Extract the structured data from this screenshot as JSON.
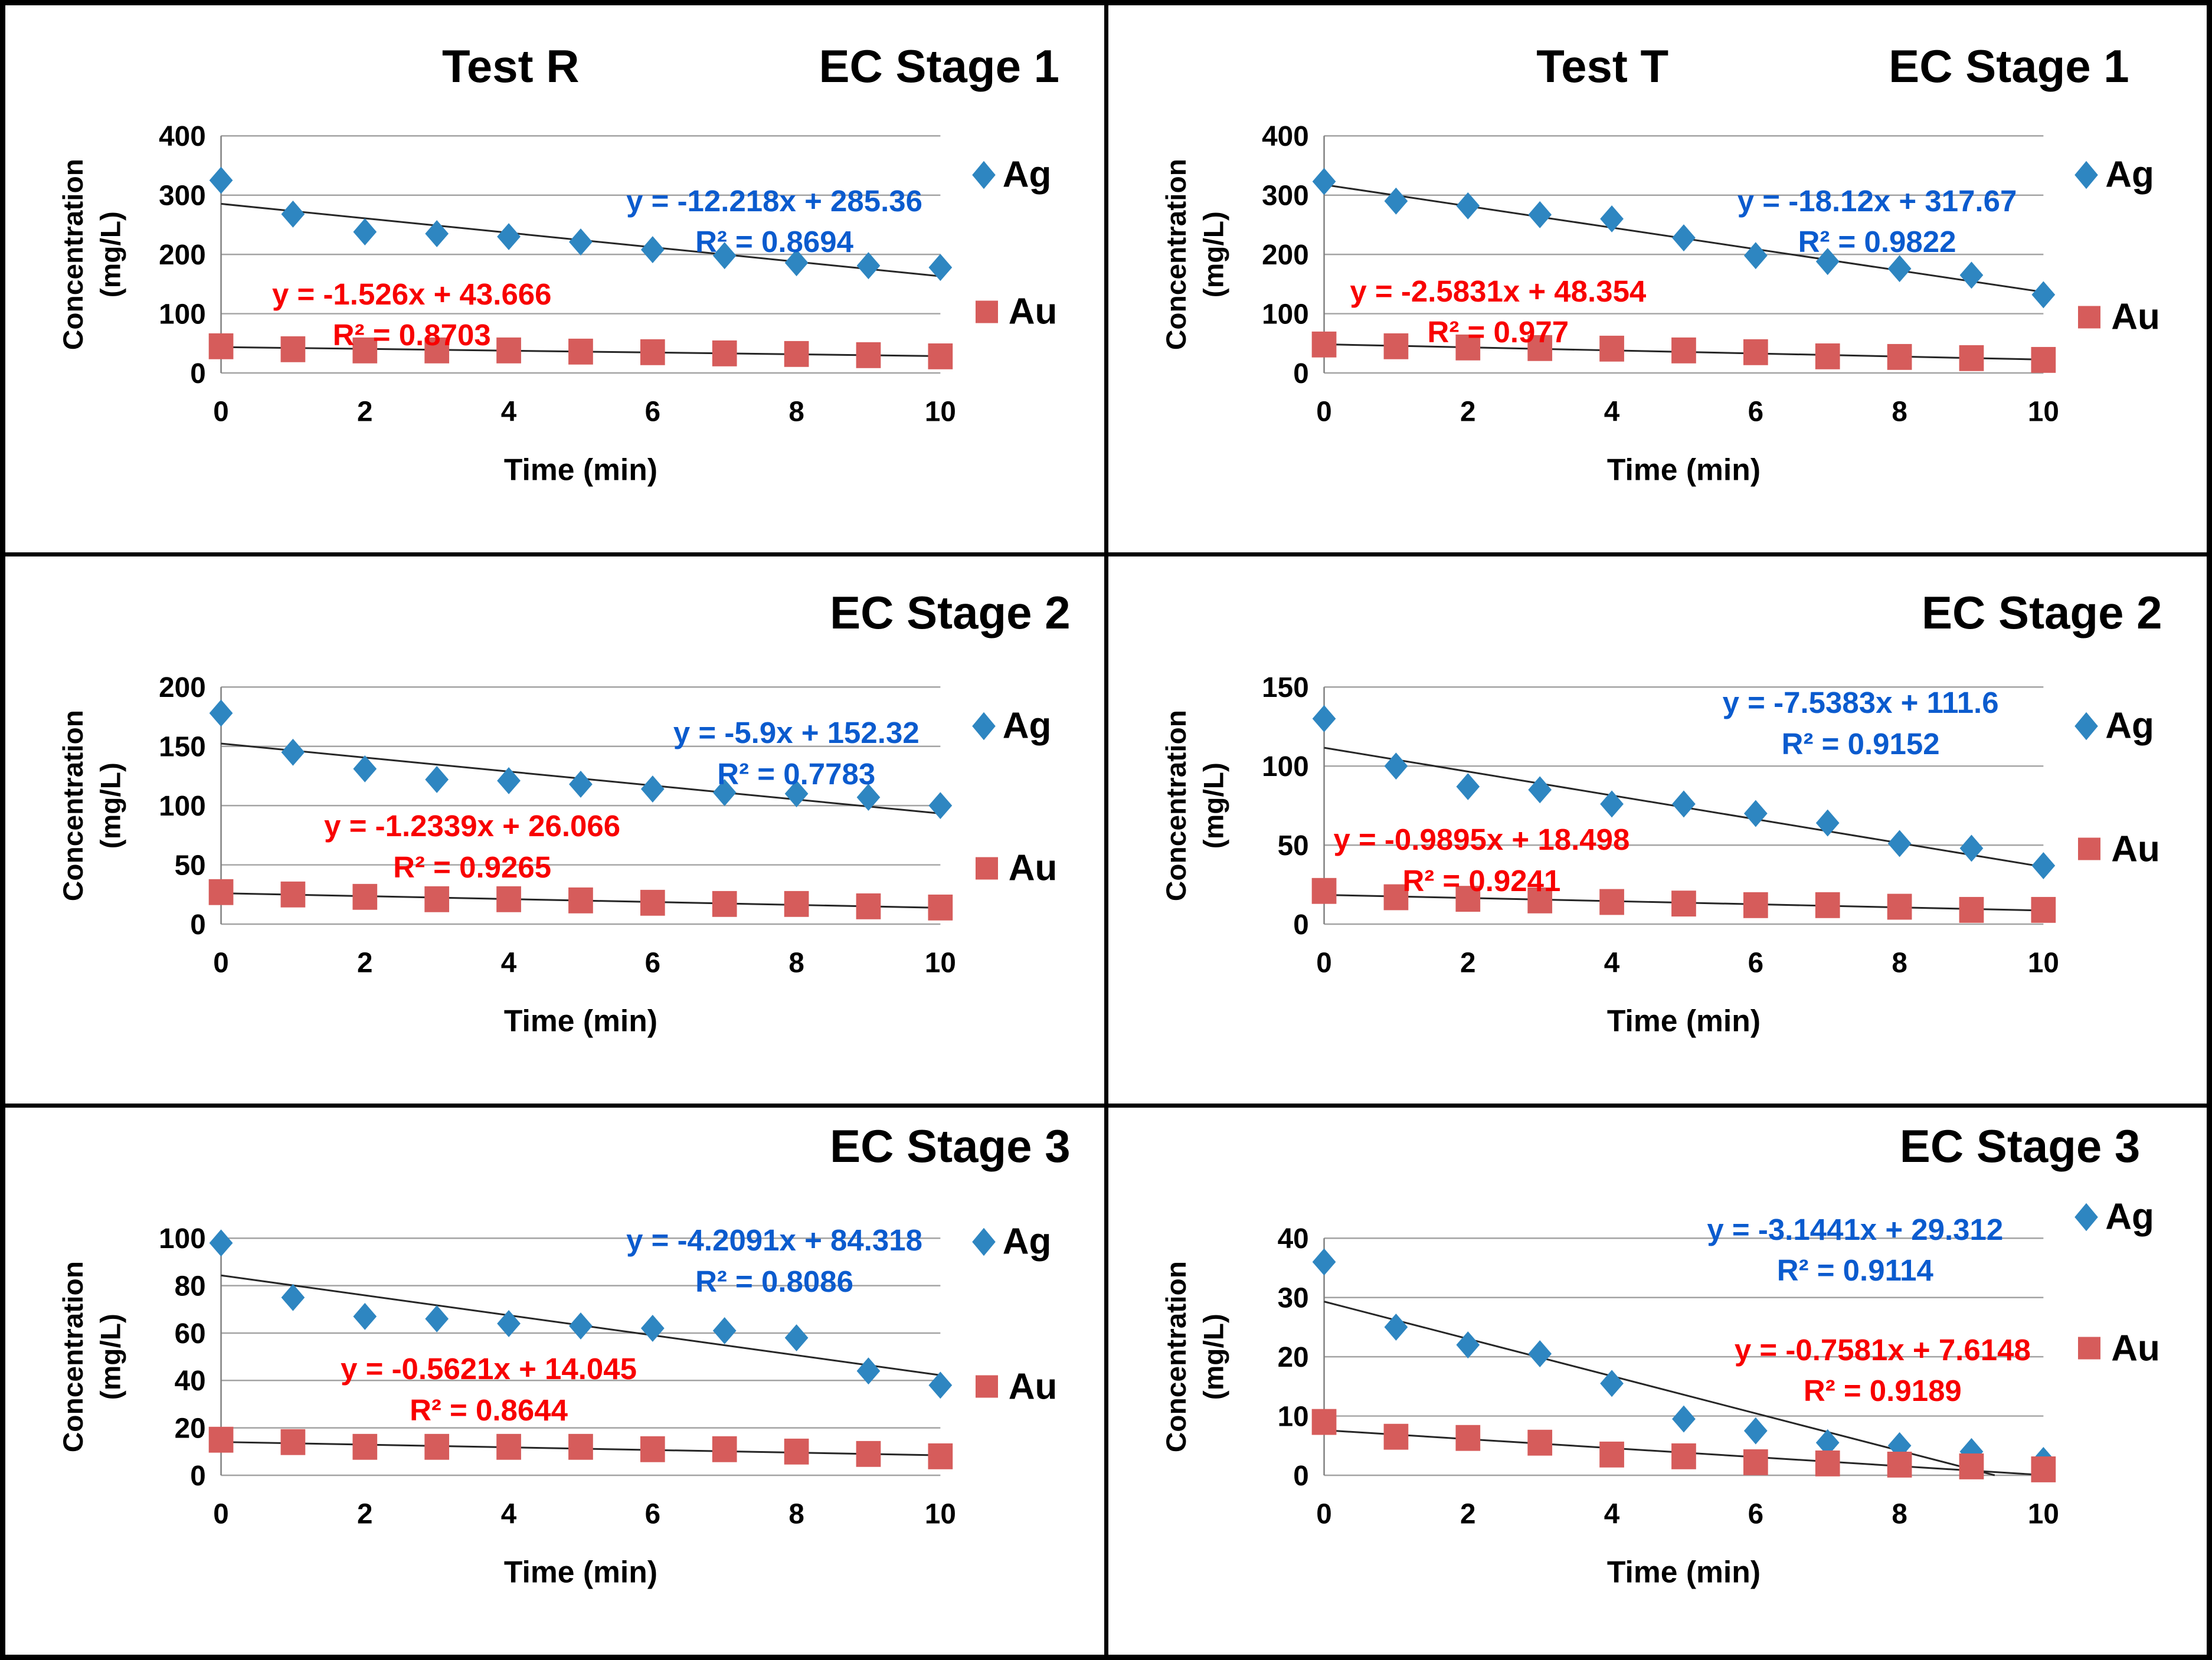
{
  "figure": {
    "description_title": "",
    "rows": 3,
    "cols": 2
  },
  "colors": {
    "ag": "#2e86c1",
    "au": "#d65c5b",
    "eq_ag": "#0b5bce",
    "eq_au": "#f80000",
    "trendline": "#262626",
    "gridline": "#a3a3a3",
    "axis": "#7f7f7f",
    "text": "#000000",
    "background": "#ffffff",
    "border": "#000000"
  },
  "legend": {
    "ag_label": "Ag",
    "au_label": "Au"
  },
  "axis": {
    "y_title_line1": "Concentration",
    "y_title_line2": "(mg/L)",
    "x_title": "Time (min)"
  },
  "chart_data": [
    {
      "id": "test-r-ec-stage-1",
      "type": "scatter",
      "test_label": "Test R",
      "stage_label": "EC Stage 1",
      "x": [
        0,
        1,
        2,
        3,
        4,
        5,
        6,
        7,
        8,
        9,
        10
      ],
      "xlabel": "Time (min)",
      "ylabel": "Concentration (mg/L)",
      "xlim": [
        0,
        10
      ],
      "xtick_step": 2,
      "ylim": [
        0,
        400
      ],
      "ytick_step": 100,
      "grid": "horizontal",
      "legend_position": "right",
      "series": [
        {
          "name": "Ag",
          "marker": "diamond",
          "values": [
            325,
            268,
            238,
            235,
            230,
            221,
            208,
            198,
            186,
            181,
            178
          ],
          "trend": {
            "slope": -12.218,
            "intercept": 285.36,
            "equation": "y = -12.218x + 285.36",
            "r2": "R² = 0.8694"
          }
        },
        {
          "name": "Au",
          "marker": "square",
          "values": [
            45,
            40,
            38,
            38,
            38,
            36,
            35,
            33,
            32,
            30,
            28
          ],
          "trend": {
            "slope": -1.526,
            "intercept": 43.666,
            "equation": "y = -1.526x + 43.666",
            "r2": "R² = 0.8703"
          }
        }
      ]
    },
    {
      "id": "test-t-ec-stage-1",
      "type": "scatter",
      "test_label": "Test T",
      "stage_label": "EC Stage 1",
      "x": [
        0,
        1,
        2,
        3,
        4,
        5,
        6,
        7,
        8,
        9,
        10
      ],
      "xlabel": "Time (min)",
      "ylabel": "Concentration (mg/L)",
      "xlim": [
        0,
        10
      ],
      "xtick_step": 2,
      "ylim": [
        0,
        400
      ],
      "ytick_step": 100,
      "grid": "horizontal",
      "legend_position": "right",
      "series": [
        {
          "name": "Ag",
          "marker": "diamond",
          "values": [
            323,
            290,
            282,
            267,
            260,
            228,
            198,
            188,
            176,
            165,
            132
          ],
          "trend": {
            "slope": -18.12,
            "intercept": 317.67,
            "equation": "y = -18.12x + 317.67",
            "r2": "R² = 0.9822"
          }
        },
        {
          "name": "Au",
          "marker": "square",
          "values": [
            48,
            45,
            43,
            42,
            41,
            38,
            35,
            28,
            27,
            25,
            22
          ],
          "trend": {
            "slope": -2.5831,
            "intercept": 48.354,
            "equation": "y = -2.5831x + 48.354",
            "r2": "R² = 0.977"
          }
        }
      ]
    },
    {
      "id": "test-r-ec-stage-2",
      "type": "scatter",
      "test_label": null,
      "stage_label": "EC Stage 2",
      "x": [
        0,
        1,
        2,
        3,
        4,
        5,
        6,
        7,
        8,
        9,
        10
      ],
      "xlabel": "Time (min)",
      "ylabel": "Concentration (mg/L)",
      "xlim": [
        0,
        10
      ],
      "xtick_step": 2,
      "ylim": [
        0,
        200
      ],
      "ytick_step": 50,
      "grid": "horizontal",
      "legend_position": "right",
      "series": [
        {
          "name": "Ag",
          "marker": "diamond",
          "values": [
            178,
            145,
            131,
            122,
            121,
            118,
            114,
            111,
            110,
            107,
            100
          ],
          "trend": {
            "slope": -5.9,
            "intercept": 152.32,
            "equation": "y = -5.9x + 152.32",
            "r2": "R² = 0.7783"
          }
        },
        {
          "name": "Au",
          "marker": "square",
          "values": [
            27,
            25,
            23,
            21,
            21,
            20,
            18,
            17,
            17,
            15,
            14
          ],
          "trend": {
            "slope": -1.2339,
            "intercept": 26.066,
            "equation": "y = -1.2339x + 26.066",
            "r2": "R² = 0.9265"
          }
        }
      ]
    },
    {
      "id": "test-t-ec-stage-2",
      "type": "scatter",
      "test_label": null,
      "stage_label": "EC Stage 2",
      "x": [
        0,
        1,
        2,
        3,
        4,
        5,
        6,
        7,
        8,
        9,
        10
      ],
      "xlabel": "Time (min)",
      "ylabel": "Concentration (mg/L)",
      "xlim": [
        0,
        10
      ],
      "xtick_step": 2,
      "ylim": [
        0,
        150
      ],
      "ytick_step": 50,
      "grid": "horizontal",
      "legend_position": "right",
      "series": [
        {
          "name": "Ag",
          "marker": "diamond",
          "values": [
            130,
            100,
            87,
            85,
            76,
            76,
            70,
            64,
            51,
            48,
            37
          ],
          "trend": {
            "slope": -7.5383,
            "intercept": 111.6,
            "equation": "y = -7.5383x + 111.6",
            "r2": "R² = 0.9152"
          }
        },
        {
          "name": "Au",
          "marker": "square",
          "values": [
            21,
            17,
            16,
            15,
            14,
            13,
            12,
            12,
            11,
            9,
            9
          ],
          "trend": {
            "slope": -0.9895,
            "intercept": 18.498,
            "equation": "y = -0.9895x + 18.498",
            "r2": "R² = 0.9241"
          }
        }
      ]
    },
    {
      "id": "test-r-ec-stage-3",
      "type": "scatter",
      "test_label": null,
      "stage_label": "EC Stage 3",
      "x": [
        0,
        1,
        2,
        3,
        4,
        5,
        6,
        7,
        8,
        9,
        10
      ],
      "xlabel": "Time (min)",
      "ylabel": "Concentration (mg/L)",
      "xlim": [
        0,
        10
      ],
      "xtick_step": 2,
      "ylim": [
        0,
        100
      ],
      "ytick_step": 20,
      "grid": "horizontal",
      "legend_position": "right",
      "series": [
        {
          "name": "Ag",
          "marker": "diamond",
          "values": [
            98,
            75,
            67,
            66,
            64,
            63,
            62,
            61,
            58,
            44,
            38
          ],
          "trend": {
            "slope": -4.2091,
            "intercept": 84.318,
            "equation": "y = -4.2091x + 84.318",
            "r2": "R² = 0.8086"
          }
        },
        {
          "name": "Au",
          "marker": "square",
          "values": [
            15,
            14,
            12,
            12,
            12,
            12,
            11,
            11,
            10,
            9,
            8
          ],
          "trend": {
            "slope": -0.5621,
            "intercept": 14.045,
            "equation": "y = -0.5621x + 14.045",
            "r2": "R² = 0.8644"
          }
        }
      ]
    },
    {
      "id": "test-t-ec-stage-3",
      "type": "scatter",
      "test_label": null,
      "stage_label": "EC Stage 3",
      "x": [
        0,
        1,
        2,
        3,
        4,
        5,
        6,
        7,
        8,
        9,
        10
      ],
      "xlabel": "Time (min)",
      "ylabel": "Concentration (mg/L)",
      "xlim": [
        0,
        10
      ],
      "xtick_step": 2,
      "ylim": [
        0,
        40
      ],
      "ytick_step": 10,
      "grid": "horizontal",
      "legend_position": "right",
      "series": [
        {
          "name": "Ag",
          "marker": "diamond",
          "values": [
            36,
            25,
            22,
            20.5,
            15.5,
            9.5,
            7.5,
            5.5,
            5,
            4,
            2.5
          ],
          "trend": {
            "slope": -3.1441,
            "intercept": 29.312,
            "equation": "y = -3.1441x + 29.312",
            "r2": "R² = 0.9114"
          }
        },
        {
          "name": "Au",
          "marker": "square",
          "values": [
            9,
            6.5,
            6.3,
            5.5,
            3.5,
            3.2,
            2.2,
            2,
            1.8,
            1.5,
            1
          ],
          "trend": {
            "slope": -0.7581,
            "intercept": 7.6148,
            "equation": "y = -0.7581x + 7.6148",
            "r2": "R² = 0.9189"
          }
        }
      ]
    }
  ]
}
